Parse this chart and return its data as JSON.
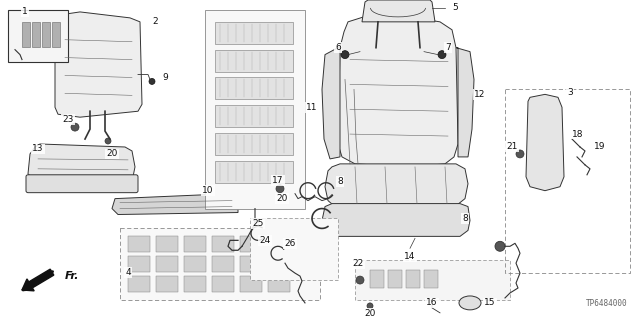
{
  "part_code": "TP6484000",
  "bg": "#ffffff",
  "lc": "#333333",
  "tc": "#111111",
  "figsize": [
    6.4,
    3.19
  ],
  "dpi": 100
}
